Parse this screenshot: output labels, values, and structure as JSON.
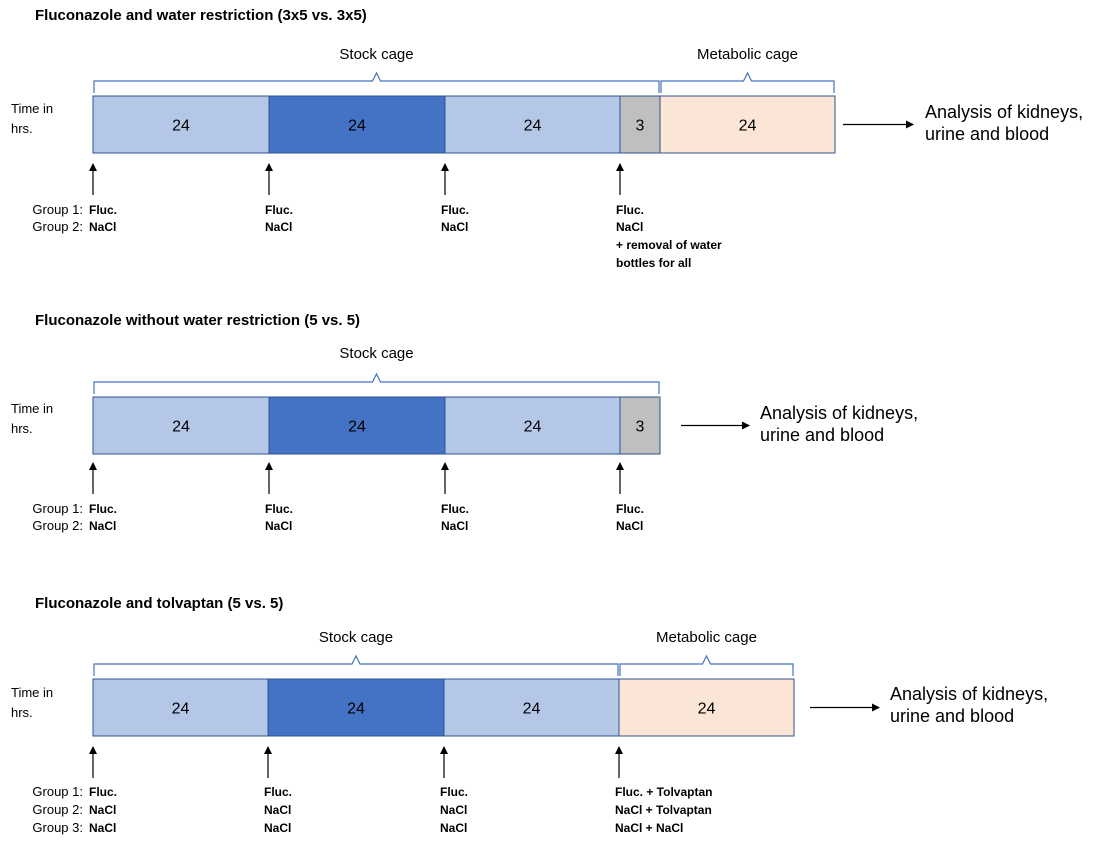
{
  "panels": [
    {
      "title": "Fluconazole and water restriction (3x5 vs. 3x5)",
      "time_label": [
        "Time in",
        "hrs."
      ],
      "segments": [
        {
          "label": "24",
          "color": "#b4c7e7"
        },
        {
          "label": "24",
          "color": "#4472c4"
        },
        {
          "label": "24",
          "color": "#b4c7e7"
        },
        {
          "label": "3",
          "color": "#bfbfbf"
        },
        {
          "label": "24",
          "color": "#fbe5d6"
        }
      ],
      "cages": [
        {
          "label": "Stock cage",
          "from": 0,
          "to": 3
        },
        {
          "label": "Metabolic cage",
          "from": 4,
          "to": 4
        }
      ],
      "analysis": [
        "Analysis of kidneys,",
        "urine and blood"
      ],
      "group_labels": [
        "Group 1:",
        "Group 2:"
      ],
      "doses": [
        [
          "Fluc.",
          "NaCl"
        ],
        [
          "Fluc.",
          "NaCl"
        ],
        [
          "Fluc.",
          "NaCl"
        ],
        [
          "Fluc.",
          "NaCl",
          "+ removal of water",
          "bottles for all"
        ]
      ]
    },
    {
      "title": "Fluconazole without water restriction (5 vs. 5)",
      "time_label": [
        "Time in",
        "hrs."
      ],
      "segments": [
        {
          "label": "24",
          "color": "#b4c7e7"
        },
        {
          "label": "24",
          "color": "#4472c4"
        },
        {
          "label": "24",
          "color": "#b4c7e7"
        },
        {
          "label": "3",
          "color": "#bfbfbf"
        }
      ],
      "cages": [
        {
          "label": "Stock cage",
          "from": 0,
          "to": 3
        }
      ],
      "analysis": [
        "Analysis of kidneys,",
        "urine and blood"
      ],
      "group_labels": [
        "Group 1:",
        "Group 2:"
      ],
      "doses": [
        [
          "Fluc.",
          "NaCl"
        ],
        [
          "Fluc.",
          "NaCl"
        ],
        [
          "Fluc.",
          "NaCl"
        ],
        [
          "Fluc.",
          "NaCl"
        ]
      ]
    },
    {
      "title": "Fluconazole and tolvaptan (5 vs. 5)",
      "time_label": [
        "Time in",
        "hrs."
      ],
      "segments": [
        {
          "label": "24",
          "color": "#b4c7e7"
        },
        {
          "label": "24",
          "color": "#4472c4"
        },
        {
          "label": "24",
          "color": "#b4c7e7"
        },
        {
          "label": "24",
          "color": "#fbe5d6"
        }
      ],
      "cages": [
        {
          "label": "Stock cage",
          "from": 0,
          "to": 2
        },
        {
          "label": "Metabolic cage",
          "from": 3,
          "to": 3
        }
      ],
      "analysis": [
        "Analysis of kidneys,",
        "urine and blood"
      ],
      "group_labels": [
        "Group 1:",
        "Group 2:",
        "Group 3:"
      ],
      "doses": [
        [
          "Fluc.",
          "NaCl",
          "NaCl"
        ],
        [
          "Fluc.",
          "NaCl",
          "NaCl"
        ],
        [
          "Fluc.",
          "NaCl",
          "NaCl"
        ],
        [
          "Fluc. + Tolvaptan",
          "NaCl + Tolvaptan",
          "NaCl + NaCl"
        ]
      ]
    }
  ]
}
